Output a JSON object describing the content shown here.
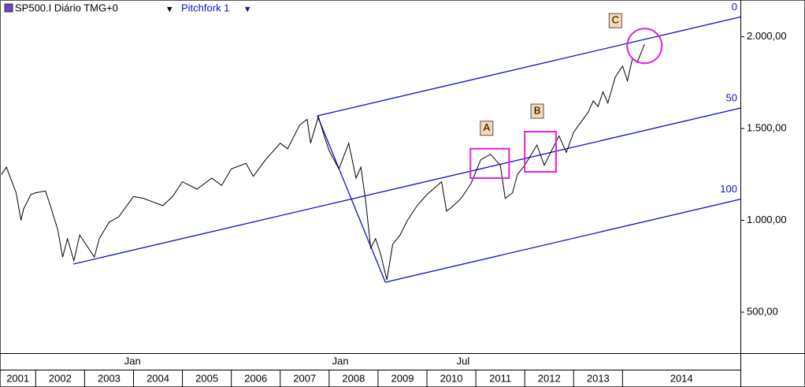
{
  "header": {
    "symbol": "SP500.I Diário TMG+0",
    "study": "Pitchfork 1"
  },
  "chart_data": {
    "type": "line",
    "x": [
      2001.3,
      2001.4,
      2001.5,
      2001.6,
      2001.7,
      2001.75,
      2001.9,
      2002.0,
      2002.2,
      2002.3,
      2002.45,
      2002.55,
      2002.65,
      2002.78,
      2002.9,
      2003.0,
      2003.2,
      2003.3,
      2003.5,
      2003.7,
      2004.0,
      2004.2,
      2004.4,
      2004.6,
      2004.8,
      2005.0,
      2005.3,
      2005.6,
      2005.8,
      2006.0,
      2006.3,
      2006.45,
      2006.7,
      2007.0,
      2007.15,
      2007.4,
      2007.55,
      2007.62,
      2007.78,
      2007.9,
      2008.0,
      2008.2,
      2008.4,
      2008.55,
      2008.65,
      2008.75,
      2008.85,
      2008.95,
      2009.05,
      2009.18,
      2009.3,
      2009.45,
      2009.6,
      2009.8,
      2010.0,
      2010.3,
      2010.4,
      2010.5,
      2010.7,
      2010.9,
      2011.1,
      2011.3,
      2011.5,
      2011.6,
      2011.75,
      2011.85,
      2012.0,
      2012.25,
      2012.4,
      2012.7,
      2012.85,
      2013.0,
      2013.3,
      2013.4,
      2013.5,
      2013.6,
      2013.7,
      2013.85,
      2014.0,
      2014.1,
      2014.2,
      2014.3,
      2014.45
    ],
    "series": [
      {
        "name": "SP500.I",
        "color": "#000000",
        "values": [
          1250,
          1290,
          1220,
          1150,
          1000,
          1060,
          1140,
          1150,
          1160,
          1080,
          950,
          800,
          900,
          780,
          920,
          880,
          800,
          900,
          990,
          1020,
          1130,
          1120,
          1100,
          1080,
          1130,
          1210,
          1170,
          1230,
          1190,
          1280,
          1310,
          1240,
          1330,
          1420,
          1390,
          1520,
          1550,
          1420,
          1565,
          1460,
          1380,
          1280,
          1420,
          1230,
          1290,
          1100,
          850,
          900,
          820,
          676,
          870,
          920,
          1000,
          1080,
          1140,
          1210,
          1050,
          1070,
          1120,
          1200,
          1330,
          1360,
          1300,
          1120,
          1150,
          1250,
          1300,
          1410,
          1300,
          1460,
          1370,
          1480,
          1590,
          1650,
          1620,
          1700,
          1640,
          1780,
          1840,
          1760,
          1880,
          1860,
          1960
        ]
      }
    ],
    "xlim": [
      2001.27,
      2016.41
    ],
    "ylim": [
      277,
      2200
    ],
    "yticks": [
      {
        "value": 500,
        "label": "500,00"
      },
      {
        "value": 1000,
        "label": "1.000,00"
      },
      {
        "value": 1500,
        "label": "1.500,00"
      },
      {
        "value": 2000,
        "label": "2.000,00"
      }
    ],
    "xticks": [
      {
        "value": 2001,
        "label": "2001"
      },
      {
        "value": 2002,
        "label": "2002"
      },
      {
        "value": 2003,
        "label": "2003"
      },
      {
        "value": 2004,
        "label": "2004"
      },
      {
        "value": 2005,
        "label": "2005"
      },
      {
        "value": 2006,
        "label": "2006"
      },
      {
        "value": 2007,
        "label": "2007"
      },
      {
        "value": 2008,
        "label": "2008"
      },
      {
        "value": 2009,
        "label": "2009"
      },
      {
        "value": 2010,
        "label": "2010"
      },
      {
        "value": 2011,
        "label": "2011"
      },
      {
        "value": 2012,
        "label": "2012"
      },
      {
        "value": 2013,
        "label": "2013"
      },
      {
        "value": 2014,
        "label": "2014"
      }
    ],
    "xticks_top": [
      {
        "value": 2003.98,
        "label": "Jan"
      },
      {
        "value": 2008.23,
        "label": "Jan"
      },
      {
        "value": 2010.74,
        "label": "Jul"
      }
    ],
    "pitchfork": {
      "color": "#1010c8",
      "pivots": {
        "x": [
          2002.77,
          2007.76,
          2009.15
        ],
        "values": [
          762,
          1569,
          663
        ]
      },
      "levels": [
        0,
        50,
        100
      ]
    },
    "annotations": [
      {
        "label": "A",
        "box": {
          "x": [
            2010.89,
            2011.68
          ],
          "values": [
            1230,
            1390
          ]
        }
      },
      {
        "label": "B",
        "box": {
          "x": [
            2012.0,
            2012.64
          ],
          "values": [
            1264,
            1483
          ]
        }
      },
      {
        "label": "C",
        "circle": {
          "x": 2014.45,
          "value": 1950
        }
      }
    ],
    "annotation_color": "#e020e0"
  }
}
